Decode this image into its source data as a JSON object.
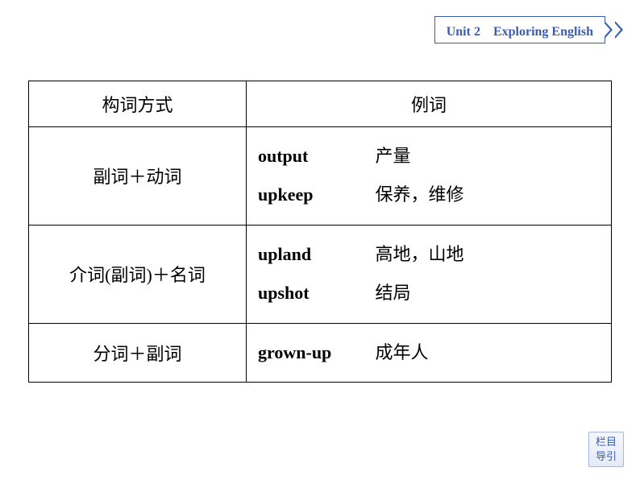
{
  "header": {
    "unit": "Unit 2　Exploring English"
  },
  "table": {
    "headers": {
      "left": "构词方式",
      "right": "例词"
    },
    "rows": [
      {
        "left": "副词＋动词",
        "entries": [
          {
            "eng": "output",
            "cn": "产量"
          },
          {
            "eng": "upkeep",
            "cn": "保养，维修"
          }
        ]
      },
      {
        "left": "介词(副词)＋名词",
        "entries": [
          {
            "eng": "upland",
            "cn": "高地，山地"
          },
          {
            "eng": "upshot",
            "cn": "结局"
          }
        ]
      },
      {
        "left": "分词＋副词",
        "entries": [
          {
            "eng": "grown-up",
            "cn": "成年人"
          }
        ]
      }
    ]
  },
  "nav": {
    "line1": "栏目",
    "line2": "导引"
  }
}
